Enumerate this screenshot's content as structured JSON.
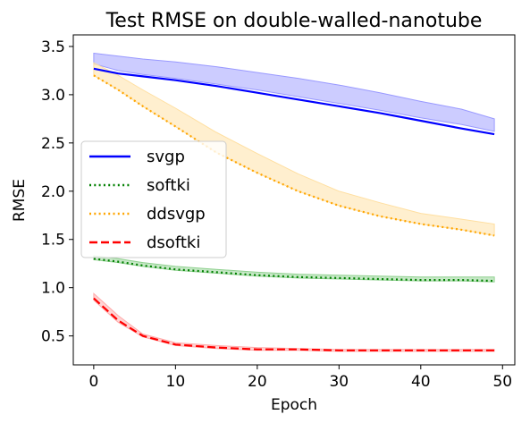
{
  "chart_data": {
    "type": "line",
    "title": "Test RMSE on double-walled-nanotube",
    "xlabel": "Epoch",
    "ylabel": "RMSE",
    "xlim": [
      -2.5,
      51.5
    ],
    "ylim": [
      0.2,
      3.62
    ],
    "xticks": [
      0,
      10,
      20,
      30,
      40,
      50
    ],
    "yticks": [
      0.5,
      1.0,
      1.5,
      2.0,
      2.5,
      3.0,
      3.5
    ],
    "grid": false,
    "legend_position": "center-left",
    "x": [
      0,
      3,
      6,
      10,
      15,
      20,
      25,
      30,
      35,
      40,
      45,
      49
    ],
    "series": [
      {
        "name": "svgp",
        "color": "#0000ff",
        "linestyle": "solid",
        "values": [
          3.27,
          3.22,
          3.19,
          3.15,
          3.09,
          3.02,
          2.95,
          2.88,
          2.81,
          2.73,
          2.65,
          2.59
        ],
        "band_upper": [
          3.43,
          3.4,
          3.37,
          3.34,
          3.29,
          3.23,
          3.17,
          3.1,
          3.02,
          2.93,
          2.85,
          2.75
        ],
        "band_lower": [
          3.32,
          3.25,
          3.21,
          3.17,
          3.11,
          3.05,
          2.98,
          2.91,
          2.84,
          2.76,
          2.69,
          2.62
        ],
        "band_color": "#9999ff"
      },
      {
        "name": "softki",
        "color": "#008000",
        "linestyle": "dotted",
        "values": [
          1.3,
          1.27,
          1.23,
          1.19,
          1.16,
          1.13,
          1.11,
          1.1,
          1.09,
          1.08,
          1.08,
          1.07
        ],
        "band_upper": [
          1.33,
          1.3,
          1.26,
          1.22,
          1.19,
          1.16,
          1.14,
          1.13,
          1.12,
          1.11,
          1.11,
          1.11
        ],
        "band_lower": [
          1.29,
          1.26,
          1.22,
          1.18,
          1.15,
          1.12,
          1.1,
          1.09,
          1.08,
          1.07,
          1.07,
          1.06
        ],
        "band_color": "#8fd18f"
      },
      {
        "name": "ddsvgp",
        "color": "#ffa500",
        "linestyle": "dotted",
        "values": [
          3.2,
          3.05,
          2.88,
          2.67,
          2.4,
          2.19,
          2.0,
          1.85,
          1.74,
          1.66,
          1.6,
          1.54
        ],
        "band_upper": [
          3.33,
          3.2,
          3.05,
          2.86,
          2.61,
          2.39,
          2.18,
          2.0,
          1.88,
          1.77,
          1.71,
          1.66
        ],
        "band_lower": [
          3.2,
          3.05,
          2.88,
          2.67,
          2.4,
          2.19,
          2.0,
          1.85,
          1.74,
          1.66,
          1.6,
          1.54
        ],
        "band_color": "#ffdfa0"
      },
      {
        "name": "dsoftki",
        "color": "#ff0000",
        "linestyle": "dashed",
        "values": [
          0.89,
          0.66,
          0.5,
          0.41,
          0.38,
          0.36,
          0.36,
          0.35,
          0.35,
          0.35,
          0.35,
          0.35
        ],
        "band_upper": [
          0.94,
          0.71,
          0.52,
          0.43,
          0.4,
          0.38,
          0.37,
          0.36,
          0.36,
          0.36,
          0.36,
          0.36
        ],
        "band_lower": [
          0.87,
          0.64,
          0.49,
          0.4,
          0.37,
          0.35,
          0.35,
          0.34,
          0.34,
          0.34,
          0.34,
          0.34
        ],
        "band_color": "#ffaaaa"
      }
    ]
  }
}
